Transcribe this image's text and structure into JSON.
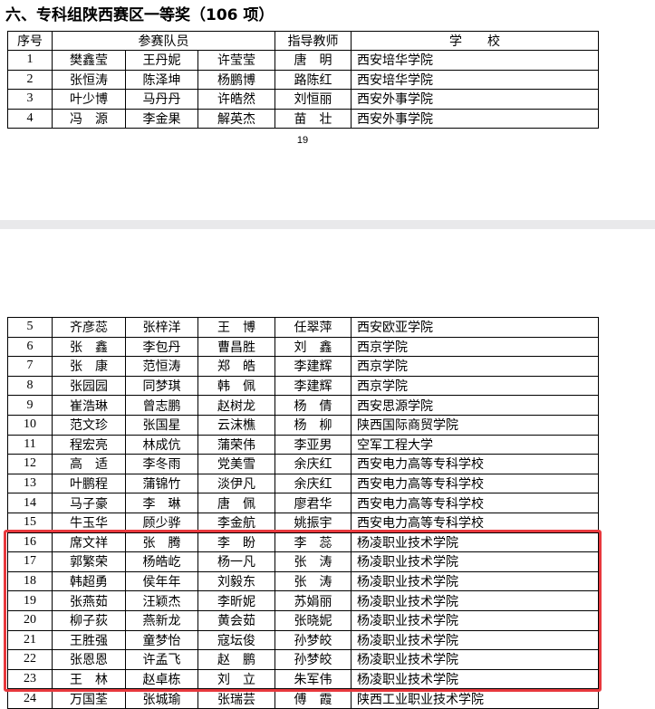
{
  "heading": "六、专科组陕西赛区一等奖（106 项）",
  "header": [
    "序号",
    "参赛队员",
    "指导教师",
    "学　　校"
  ],
  "page1_rows": [
    [
      "1",
      "樊鑫莹",
      "王丹妮",
      "许莹莹",
      "唐　明",
      "西安培华学院"
    ],
    [
      "2",
      "张恒涛",
      "陈泽坤",
      "杨鹏博",
      "路陈红",
      "西安培华学院"
    ],
    [
      "3",
      "叶少博",
      "马丹丹",
      "许皓然",
      "刘恒丽",
      "西安外事学院"
    ],
    [
      "4",
      "冯　源",
      "李金果",
      "解英杰",
      "苗　壮",
      "西安外事学院"
    ]
  ],
  "page_number": "19",
  "page2_rows": [
    [
      "5",
      "齐彦蕊",
      "张梓洋",
      "王　博",
      "任翠萍",
      "西安欧亚学院"
    ],
    [
      "6",
      "张　鑫",
      "李包丹",
      "曹昌胜",
      "刘　鑫",
      "西京学院"
    ],
    [
      "7",
      "张　康",
      "范恒涛",
      "郑　皓",
      "李建辉",
      "西京学院"
    ],
    [
      "8",
      "张园园",
      "同梦琪",
      "韩　佩",
      "李建辉",
      "西京学院"
    ],
    [
      "9",
      "崔浩琳",
      "曾志鹏",
      "赵树龙",
      "杨　倩",
      "西安思源学院"
    ],
    [
      "10",
      "范文珍",
      "张国星",
      "云沫樵",
      "杨　柳",
      "陕西国际商贸学院"
    ],
    [
      "11",
      "程宏亮",
      "林成伉",
      "蒲荣伟",
      "李亚男",
      "空军工程大学"
    ],
    [
      "12",
      "高　适",
      "李冬雨",
      "党美雪",
      "余庆红",
      "西安电力高等专科学校"
    ],
    [
      "13",
      "叶鹏程",
      "蒲锦竹",
      "淡伊凡",
      "余庆红",
      "西安电力高等专科学校"
    ],
    [
      "14",
      "马子豪",
      "李　琳",
      "唐　佩",
      "廖君华",
      "西安电力高等专科学校"
    ],
    [
      "15",
      "牛玉华",
      "顾少骅",
      "李金航",
      "姚振宇",
      "西安电力高等专科学校"
    ],
    [
      "16",
      "席文祥",
      "张　腾",
      "李　盼",
      "李　蕊",
      "杨凌职业技术学院"
    ],
    [
      "17",
      "郭繁荣",
      "杨皓屹",
      "杨一凡",
      "张　涛",
      "杨凌职业技术学院"
    ],
    [
      "18",
      "韩超勇",
      "侯年年",
      "刘毅东",
      "张　涛",
      "杨凌职业技术学院"
    ],
    [
      "19",
      "张燕茹",
      "汪颖杰",
      "李昕妮",
      "苏娟丽",
      "杨凌职业技术学院"
    ],
    [
      "20",
      "柳子荻",
      "燕新龙",
      "黄会茹",
      "张晓妮",
      "杨凌职业技术学院"
    ],
    [
      "21",
      "王胜强",
      "童梦怡",
      "寇坛俊",
      "孙梦皎",
      "杨凌职业技术学院"
    ],
    [
      "22",
      "张恩恩",
      "许孟飞",
      "赵　鹏",
      "孙梦皎",
      "杨凌职业技术学院"
    ],
    [
      "23",
      "王　林",
      "赵卓栋",
      "刘　立",
      "朱军伟",
      "杨凌职业技术学院"
    ],
    [
      "24",
      "万国荃",
      "张城瑜",
      "张瑞芸",
      "傅　霞",
      "陕西工业职业技术学院"
    ]
  ]
}
